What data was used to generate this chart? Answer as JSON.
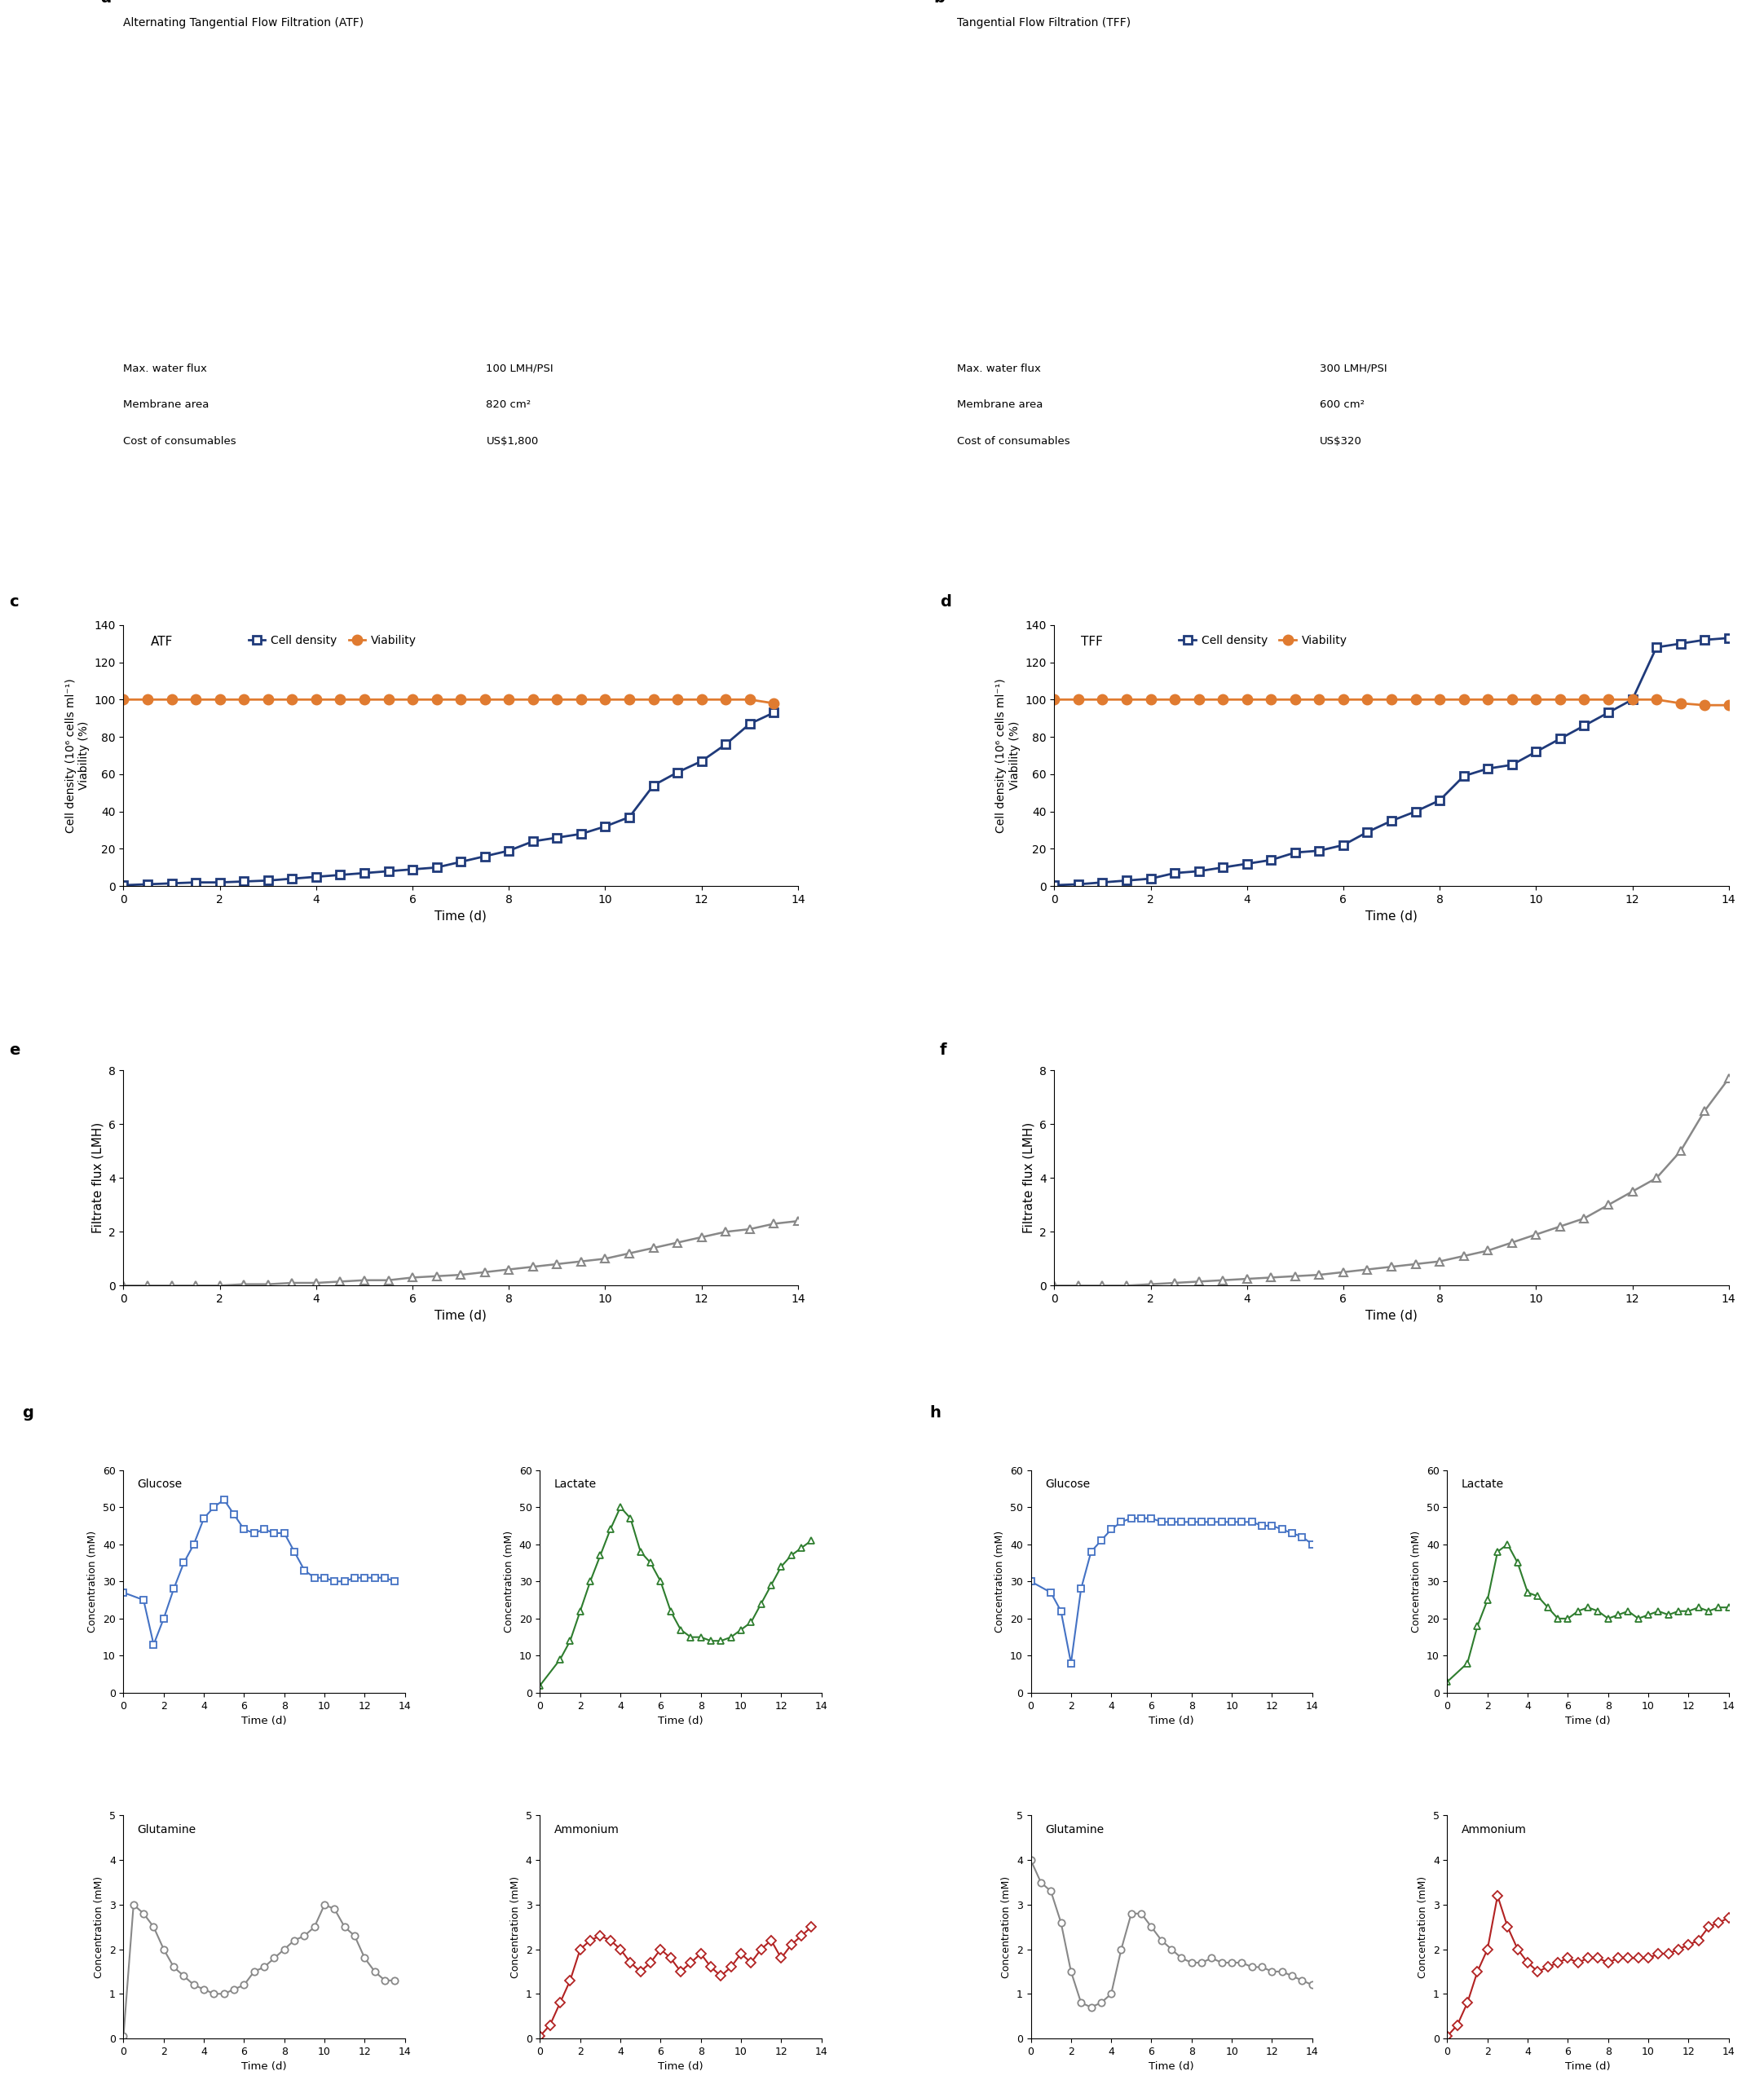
{
  "panel_c_cell_density": {
    "x": [
      0,
      0.5,
      1,
      1.5,
      2,
      2.5,
      3,
      3.5,
      4,
      4.5,
      5,
      5.5,
      6,
      6.5,
      7,
      7.5,
      8,
      8.5,
      9,
      9.5,
      10,
      10.5,
      11,
      11.5,
      12,
      12.5,
      13,
      13.5
    ],
    "y": [
      0.5,
      1,
      1.5,
      2,
      2,
      2.5,
      3,
      4,
      5,
      6,
      7,
      8,
      9,
      10,
      13,
      16,
      19,
      24,
      26,
      28,
      32,
      37,
      54,
      61,
      67,
      76,
      87,
      93
    ]
  },
  "panel_c_viability": {
    "x": [
      0,
      0.5,
      1,
      1.5,
      2,
      2.5,
      3,
      3.5,
      4,
      4.5,
      5,
      5.5,
      6,
      6.5,
      7,
      7.5,
      8,
      8.5,
      9,
      9.5,
      10,
      10.5,
      11,
      11.5,
      12,
      12.5,
      13,
      13.5
    ],
    "y": [
      100,
      100,
      100,
      100,
      100,
      100,
      100,
      100,
      100,
      100,
      100,
      100,
      100,
      100,
      100,
      100,
      100,
      100,
      100,
      100,
      100,
      100,
      100,
      100,
      100,
      100,
      100,
      98
    ]
  },
  "panel_d_cell_density": {
    "x": [
      0,
      0.5,
      1,
      1.5,
      2,
      2.5,
      3,
      3.5,
      4,
      4.5,
      5,
      5.5,
      6,
      6.5,
      7,
      7.5,
      8,
      8.5,
      9,
      9.5,
      10,
      10.5,
      11,
      11.5,
      12,
      12.5,
      13,
      13.5,
      14
    ],
    "y": [
      0.5,
      1,
      2,
      3,
      4,
      7,
      8,
      10,
      12,
      14,
      18,
      19,
      22,
      29,
      35,
      40,
      46,
      59,
      63,
      65,
      72,
      79,
      86,
      93,
      100,
      128,
      130,
      132,
      133
    ]
  },
  "panel_d_viability": {
    "x": [
      0,
      0.5,
      1,
      1.5,
      2,
      2.5,
      3,
      3.5,
      4,
      4.5,
      5,
      5.5,
      6,
      6.5,
      7,
      7.5,
      8,
      8.5,
      9,
      9.5,
      10,
      10.5,
      11,
      11.5,
      12,
      12.5,
      13,
      13.5,
      14
    ],
    "y": [
      100,
      100,
      100,
      100,
      100,
      100,
      100,
      100,
      100,
      100,
      100,
      100,
      100,
      100,
      100,
      100,
      100,
      100,
      100,
      100,
      100,
      100,
      100,
      100,
      100,
      100,
      98,
      97,
      97
    ]
  },
  "panel_e_filtrate": {
    "x": [
      0,
      0.5,
      1,
      1.5,
      2,
      2.5,
      3,
      3.5,
      4,
      4.5,
      5,
      5.5,
      6,
      6.5,
      7,
      7.5,
      8,
      8.5,
      9,
      9.5,
      10,
      10.5,
      11,
      11.5,
      12,
      12.5,
      13,
      13.5,
      14
    ],
    "y": [
      0,
      0,
      0,
      0,
      0,
      0.05,
      0.05,
      0.1,
      0.1,
      0.15,
      0.2,
      0.2,
      0.3,
      0.35,
      0.4,
      0.5,
      0.6,
      0.7,
      0.8,
      0.9,
      1.0,
      1.2,
      1.4,
      1.6,
      1.8,
      2.0,
      2.1,
      2.3,
      2.4
    ]
  },
  "panel_f_filtrate": {
    "x": [
      0,
      0.5,
      1,
      1.5,
      2,
      2.5,
      3,
      3.5,
      4,
      4.5,
      5,
      5.5,
      6,
      6.5,
      7,
      7.5,
      8,
      8.5,
      9,
      9.5,
      10,
      10.5,
      11,
      11.5,
      12,
      12.5,
      13,
      13.5,
      14
    ],
    "y": [
      0,
      0,
      0,
      0,
      0.05,
      0.1,
      0.15,
      0.2,
      0.25,
      0.3,
      0.35,
      0.4,
      0.5,
      0.6,
      0.7,
      0.8,
      0.9,
      1.1,
      1.3,
      1.6,
      1.9,
      2.2,
      2.5,
      3.0,
      3.5,
      4.0,
      5.0,
      6.5,
      7.7
    ]
  },
  "panel_g_glucose": {
    "x": [
      0,
      1,
      1.5,
      2,
      2.5,
      3,
      3.5,
      4,
      4.5,
      5,
      5.5,
      6,
      6.5,
      7,
      7.5,
      8,
      8.5,
      9,
      9.5,
      10,
      10.5,
      11,
      11.5,
      12,
      12.5,
      13,
      13.5
    ],
    "y": [
      27,
      25,
      13,
      20,
      28,
      35,
      40,
      47,
      50,
      52,
      48,
      44,
      43,
      44,
      43,
      43,
      38,
      33,
      31,
      31,
      30,
      30,
      31,
      31,
      31,
      31,
      30
    ]
  },
  "panel_g_lactate": {
    "x": [
      0,
      1,
      1.5,
      2,
      2.5,
      3,
      3.5,
      4,
      4.5,
      5,
      5.5,
      6,
      6.5,
      7,
      7.5,
      8,
      8.5,
      9,
      9.5,
      10,
      10.5,
      11,
      11.5,
      12,
      12.5,
      13,
      13.5
    ],
    "y": [
      2,
      9,
      14,
      22,
      30,
      37,
      44,
      50,
      47,
      38,
      35,
      30,
      22,
      17,
      15,
      15,
      14,
      14,
      15,
      17,
      19,
      24,
      29,
      34,
      37,
      39,
      41
    ]
  },
  "panel_g_glutamine": {
    "x": [
      0,
      0.5,
      1,
      1.5,
      2,
      2.5,
      3,
      3.5,
      4,
      4.5,
      5,
      5.5,
      6,
      6.5,
      7,
      7.5,
      8,
      8.5,
      9,
      9.5,
      10,
      10.5,
      11,
      11.5,
      12,
      12.5,
      13,
      13.5
    ],
    "y": [
      0.05,
      3.0,
      2.8,
      2.5,
      2.0,
      1.6,
      1.4,
      1.2,
      1.1,
      1.0,
      1.0,
      1.1,
      1.2,
      1.5,
      1.6,
      1.8,
      2.0,
      2.2,
      2.3,
      2.5,
      3.0,
      2.9,
      2.5,
      2.3,
      1.8,
      1.5,
      1.3,
      1.3
    ]
  },
  "panel_g_ammonium": {
    "x": [
      0,
      0.5,
      1,
      1.5,
      2,
      2.5,
      3,
      3.5,
      4,
      4.5,
      5,
      5.5,
      6,
      6.5,
      7,
      7.5,
      8,
      8.5,
      9,
      9.5,
      10,
      10.5,
      11,
      11.5,
      12,
      12.5,
      13,
      13.5
    ],
    "y": [
      0.05,
      0.3,
      0.8,
      1.3,
      2.0,
      2.2,
      2.3,
      2.2,
      2.0,
      1.7,
      1.5,
      1.7,
      2.0,
      1.8,
      1.5,
      1.7,
      1.9,
      1.6,
      1.4,
      1.6,
      1.9,
      1.7,
      2.0,
      2.2,
      1.8,
      2.1,
      2.3,
      2.5
    ]
  },
  "panel_h_glucose": {
    "x": [
      0,
      1,
      1.5,
      2,
      2.5,
      3,
      3.5,
      4,
      4.5,
      5,
      5.5,
      6,
      6.5,
      7,
      7.5,
      8,
      8.5,
      9,
      9.5,
      10,
      10.5,
      11,
      11.5,
      12,
      12.5,
      13,
      13.5,
      14
    ],
    "y": [
      30,
      27,
      22,
      8,
      28,
      38,
      41,
      44,
      46,
      47,
      47,
      47,
      46,
      46,
      46,
      46,
      46,
      46,
      46,
      46,
      46,
      46,
      45,
      45,
      44,
      43,
      42,
      40
    ]
  },
  "panel_h_lactate": {
    "x": [
      0,
      1,
      1.5,
      2,
      2.5,
      3,
      3.5,
      4,
      4.5,
      5,
      5.5,
      6,
      6.5,
      7,
      7.5,
      8,
      8.5,
      9,
      9.5,
      10,
      10.5,
      11,
      11.5,
      12,
      12.5,
      13,
      13.5,
      14
    ],
    "y": [
      3,
      8,
      18,
      25,
      38,
      40,
      35,
      27,
      26,
      23,
      20,
      20,
      22,
      23,
      22,
      20,
      21,
      22,
      20,
      21,
      22,
      21,
      22,
      22,
      23,
      22,
      23,
      23
    ]
  },
  "panel_h_glutamine": {
    "x": [
      0,
      0.5,
      1,
      1.5,
      2,
      2.5,
      3,
      3.5,
      4,
      4.5,
      5,
      5.5,
      6,
      6.5,
      7,
      7.5,
      8,
      8.5,
      9,
      9.5,
      10,
      10.5,
      11,
      11.5,
      12,
      12.5,
      13,
      13.5,
      14
    ],
    "y": [
      4.0,
      3.5,
      3.3,
      2.6,
      1.5,
      0.8,
      0.7,
      0.8,
      1.0,
      2.0,
      2.8,
      2.8,
      2.5,
      2.2,
      2.0,
      1.8,
      1.7,
      1.7,
      1.8,
      1.7,
      1.7,
      1.7,
      1.6,
      1.6,
      1.5,
      1.5,
      1.4,
      1.3,
      1.2
    ]
  },
  "panel_h_ammonium": {
    "x": [
      0,
      0.5,
      1,
      1.5,
      2,
      2.5,
      3,
      3.5,
      4,
      4.5,
      5,
      5.5,
      6,
      6.5,
      7,
      7.5,
      8,
      8.5,
      9,
      9.5,
      10,
      10.5,
      11,
      11.5,
      12,
      12.5,
      13,
      13.5,
      14
    ],
    "y": [
      0.05,
      0.3,
      0.8,
      1.5,
      2.0,
      3.2,
      2.5,
      2.0,
      1.7,
      1.5,
      1.6,
      1.7,
      1.8,
      1.7,
      1.8,
      1.8,
      1.7,
      1.8,
      1.8,
      1.8,
      1.8,
      1.9,
      1.9,
      2.0,
      2.1,
      2.2,
      2.5,
      2.6,
      2.7
    ]
  },
  "colors": {
    "cell_density": "#1f3a7a",
    "viability": "#e07b30",
    "filtrate": "#888888",
    "glucose": "#4472c4",
    "lactate": "#2e7d2e",
    "glutamine": "#888888",
    "ammonium": "#b22222"
  },
  "atf_specs": {
    "max_water_flux": "100 LMH/PSI",
    "membrane_area": "820 cm²",
    "cost": "US$1,800"
  },
  "tff_specs": {
    "max_water_flux": "300 LMH/PSI",
    "membrane_area": "600 cm²",
    "cost": "US$320"
  }
}
